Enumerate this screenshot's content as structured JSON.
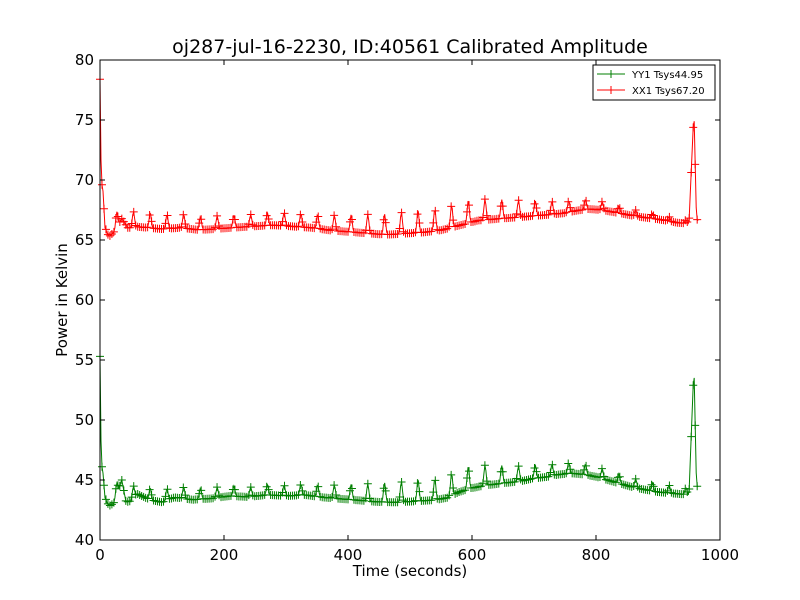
{
  "chart_data": {
    "type": "line",
    "title": "oj287-jul-16-2230, ID:40561 Calibrated Amplitude",
    "xlabel": "Time (seconds)",
    "ylabel": "Power in Kelvin",
    "xlim": [
      0,
      1000
    ],
    "ylim": [
      40,
      80
    ],
    "xticks": [
      "0",
      "200",
      "400",
      "600",
      "800",
      "1000"
    ],
    "yticks": [
      "40",
      "45",
      "50",
      "55",
      "60",
      "65",
      "70",
      "75",
      "80"
    ],
    "grid": false,
    "legend_position": "top-right",
    "marker": "plus",
    "series": [
      {
        "name": "YY1 Tsys44.95",
        "color": "#007f00",
        "points": [
          [
            0,
            55.3
          ],
          [
            2,
            46.5
          ],
          [
            5,
            45.5
          ],
          [
            8,
            43.5
          ],
          [
            15,
            43.0
          ],
          [
            22,
            43.2
          ],
          [
            30,
            44.3
          ],
          [
            35,
            45.2
          ],
          [
            42,
            43.3
          ],
          [
            50,
            43.4
          ],
          [
            60,
            44.0
          ],
          [
            80,
            43.5
          ],
          [
            100,
            43.3
          ],
          [
            120,
            43.7
          ],
          [
            150,
            43.5
          ],
          [
            180,
            43.6
          ],
          [
            210,
            43.8
          ],
          [
            240,
            43.7
          ],
          [
            270,
            43.9
          ],
          [
            300,
            43.8
          ],
          [
            330,
            43.9
          ],
          [
            360,
            43.7
          ],
          [
            390,
            43.6
          ],
          [
            420,
            43.5
          ],
          [
            450,
            43.4
          ],
          [
            480,
            43.4
          ],
          [
            510,
            43.5
          ],
          [
            540,
            43.6
          ],
          [
            560,
            43.8
          ],
          [
            580,
            44.3
          ],
          [
            600,
            44.6
          ],
          [
            620,
            44.8
          ],
          [
            640,
            44.9
          ],
          [
            660,
            45.0
          ],
          [
            680,
            45.1
          ],
          [
            700,
            45.3
          ],
          [
            720,
            45.4
          ],
          [
            740,
            45.6
          ],
          [
            760,
            45.7
          ],
          [
            780,
            45.6
          ],
          [
            800,
            45.4
          ],
          [
            820,
            45.1
          ],
          [
            840,
            44.8
          ],
          [
            860,
            44.5
          ],
          [
            880,
            44.3
          ],
          [
            900,
            44.1
          ],
          [
            920,
            44.0
          ],
          [
            940,
            43.9
          ],
          [
            950,
            43.8
          ],
          [
            958,
            54.5
          ],
          [
            962,
            44.6
          ],
          [
            966,
            44.5
          ]
        ],
        "oscillation": {
          "period_s": 27,
          "amplitude_k": [
            1.0,
            1.0,
            0.8,
            1.0,
            1.7,
            1.9,
            1.0,
            0.8,
            0.6
          ]
        }
      },
      {
        "name": "XX1 Tsys67.20",
        "color": "#ff0000",
        "points": [
          [
            0,
            78.4
          ],
          [
            2,
            70.0
          ],
          [
            5,
            69.0
          ],
          [
            8,
            66.0
          ],
          [
            15,
            65.5
          ],
          [
            25,
            66.0
          ],
          [
            35,
            67.0
          ],
          [
            45,
            66.2
          ],
          [
            60,
            66.3
          ],
          [
            80,
            66.2
          ],
          [
            100,
            66.1
          ],
          [
            130,
            66.2
          ],
          [
            160,
            66.0
          ],
          [
            190,
            66.1
          ],
          [
            220,
            66.2
          ],
          [
            250,
            66.3
          ],
          [
            280,
            66.4
          ],
          [
            310,
            66.3
          ],
          [
            340,
            66.2
          ],
          [
            370,
            66.0
          ],
          [
            400,
            65.9
          ],
          [
            430,
            65.8
          ],
          [
            460,
            65.7
          ],
          [
            490,
            65.8
          ],
          [
            520,
            65.9
          ],
          [
            550,
            66.1
          ],
          [
            580,
            66.5
          ],
          [
            610,
            66.9
          ],
          [
            640,
            67.0
          ],
          [
            670,
            67.1
          ],
          [
            700,
            67.2
          ],
          [
            730,
            67.3
          ],
          [
            750,
            67.4
          ],
          [
            770,
            67.6
          ],
          [
            790,
            67.7
          ],
          [
            810,
            67.6
          ],
          [
            840,
            67.3
          ],
          [
            870,
            67.0
          ],
          [
            900,
            66.8
          ],
          [
            930,
            66.5
          ],
          [
            950,
            66.4
          ],
          [
            958,
            75.8
          ],
          [
            962,
            66.8
          ],
          [
            966,
            66.6
          ]
        ],
        "oscillation": {
          "period_s": 27,
          "amplitude_k": [
            1.4,
            1.2,
            1.0,
            1.2,
            1.8,
            1.9,
            1.2,
            0.6,
            0.3
          ]
        }
      }
    ]
  }
}
